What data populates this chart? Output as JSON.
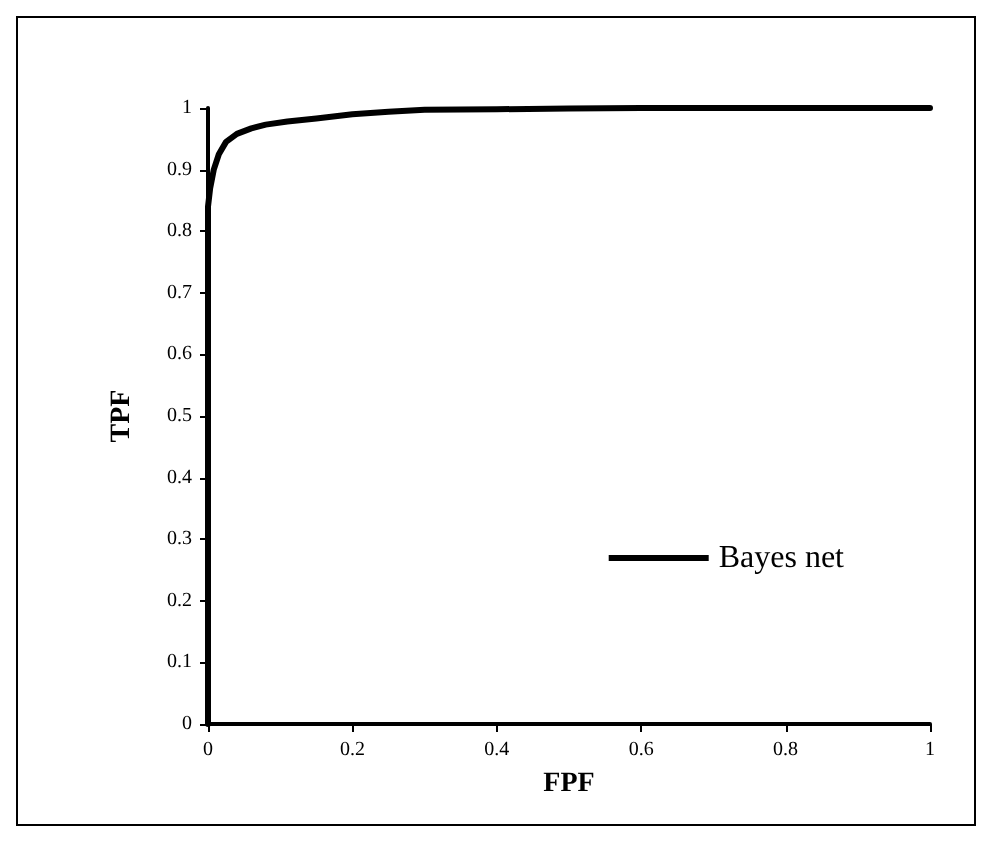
{
  "chart_data": {
    "type": "line",
    "xlabel": "FPF",
    "ylabel": "TPF",
    "xlim": [
      0,
      1
    ],
    "ylim": [
      0,
      1
    ],
    "xticks": [
      0,
      0.2,
      0.4,
      0.6,
      0.8,
      1
    ],
    "yticks": [
      0,
      0.1,
      0.2,
      0.3,
      0.4,
      0.5,
      0.6,
      0.7,
      0.8,
      0.9,
      1
    ],
    "legend": "bottom right",
    "marker": "none",
    "line_style": "solid",
    "grid": false,
    "series": [
      {
        "name": "Bayes net",
        "color": "#000000",
        "x": [
          0,
          0,
          0.003,
          0.008,
          0.015,
          0.025,
          0.04,
          0.06,
          0.08,
          0.11,
          0.15,
          0.2,
          0.25,
          0.3,
          0.4,
          0.5,
          0.6,
          0.8,
          1
        ],
        "values": [
          0,
          0.84,
          0.87,
          0.9,
          0.925,
          0.945,
          0.958,
          0.967,
          0.973,
          0.978,
          0.983,
          0.99,
          0.994,
          0.997,
          0.998,
          0.999,
          1,
          1,
          1
        ]
      }
    ]
  }
}
